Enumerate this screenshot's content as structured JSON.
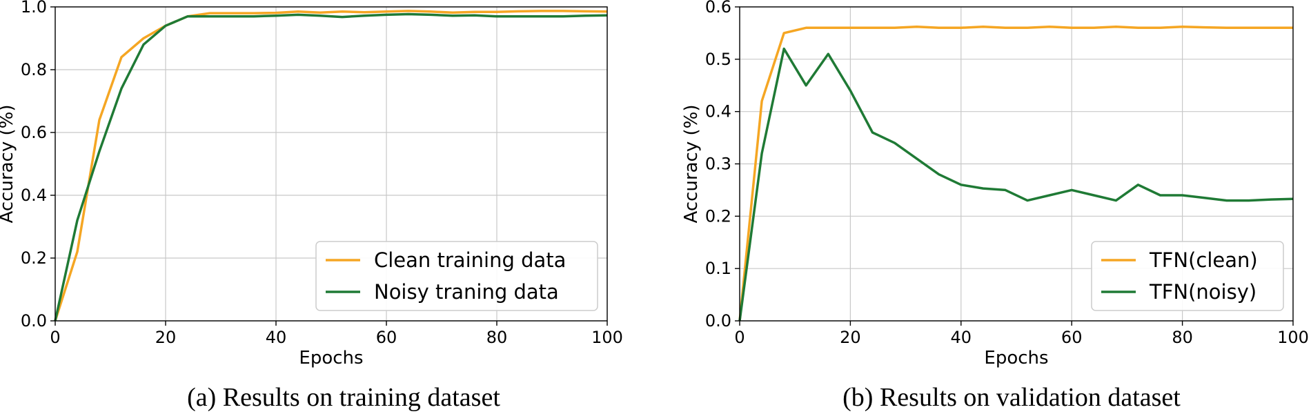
{
  "chart_data": [
    {
      "type": "line",
      "caption": "(a) Results on training dataset",
      "xlabel": "Epochs",
      "ylabel": "Accuracy (%)",
      "xlim": [
        0,
        100
      ],
      "ylim": [
        0,
        1.0
      ],
      "xticks": [
        0,
        20,
        40,
        60,
        80,
        100
      ],
      "yticks": [
        0.0,
        0.2,
        0.4,
        0.6,
        0.8,
        1.0
      ],
      "xtick_labels": [
        "0",
        "20",
        "40",
        "60",
        "80",
        "100"
      ],
      "ytick_labels": [
        "0.0",
        "0.2",
        "0.4",
        "0.6",
        "0.8",
        "1.0"
      ],
      "grid": true,
      "legend_position": "lower-right",
      "series": [
        {
          "name": "Clean training data",
          "color": "#f5a623",
          "x": [
            0,
            4,
            8,
            12,
            16,
            20,
            24,
            28,
            32,
            36,
            40,
            44,
            48,
            52,
            56,
            60,
            64,
            68,
            72,
            76,
            80,
            84,
            88,
            92,
            96,
            100
          ],
          "y": [
            0.0,
            0.22,
            0.64,
            0.84,
            0.9,
            0.94,
            0.97,
            0.98,
            0.98,
            0.98,
            0.981,
            0.985,
            0.982,
            0.985,
            0.983,
            0.985,
            0.987,
            0.985,
            0.982,
            0.984,
            0.984,
            0.986,
            0.987,
            0.987,
            0.986,
            0.985
          ]
        },
        {
          "name": "Noisy traning data",
          "color": "#1f7a35",
          "x": [
            0,
            4,
            8,
            12,
            16,
            20,
            24,
            28,
            32,
            36,
            40,
            44,
            48,
            52,
            56,
            60,
            64,
            68,
            72,
            76,
            80,
            84,
            88,
            92,
            96,
            100
          ],
          "y": [
            0.0,
            0.32,
            0.54,
            0.74,
            0.88,
            0.94,
            0.97,
            0.97,
            0.97,
            0.97,
            0.972,
            0.975,
            0.972,
            0.968,
            0.972,
            0.975,
            0.977,
            0.975,
            0.972,
            0.973,
            0.97,
            0.97,
            0.97,
            0.97,
            0.972,
            0.973
          ]
        }
      ]
    },
    {
      "type": "line",
      "caption": "(b) Results on validation dataset",
      "xlabel": "Epochs",
      "ylabel": "Accuracy (%)",
      "xlim": [
        0,
        100
      ],
      "ylim": [
        0,
        0.6
      ],
      "xticks": [
        0,
        20,
        40,
        60,
        80,
        100
      ],
      "yticks": [
        0.0,
        0.1,
        0.2,
        0.3,
        0.4,
        0.5,
        0.6
      ],
      "xtick_labels": [
        "0",
        "20",
        "40",
        "60",
        "80",
        "100"
      ],
      "ytick_labels": [
        "0.0",
        "0.1",
        "0.2",
        "0.3",
        "0.4",
        "0.5",
        "0.6"
      ],
      "grid": true,
      "legend_position": "lower-right",
      "series": [
        {
          "name": "TFN(clean)",
          "color": "#f5a623",
          "x": [
            0,
            4,
            8,
            12,
            16,
            20,
            24,
            28,
            32,
            36,
            40,
            44,
            48,
            52,
            56,
            60,
            64,
            68,
            72,
            76,
            80,
            84,
            88,
            92,
            96,
            100
          ],
          "y": [
            0.0,
            0.42,
            0.55,
            0.56,
            0.56,
            0.56,
            0.56,
            0.56,
            0.562,
            0.56,
            0.56,
            0.562,
            0.56,
            0.56,
            0.562,
            0.56,
            0.56,
            0.562,
            0.56,
            0.56,
            0.562,
            0.561,
            0.56,
            0.56,
            0.56,
            0.56
          ]
        },
        {
          "name": "TFN(noisy)",
          "color": "#1f7a35",
          "x": [
            0,
            4,
            8,
            12,
            16,
            20,
            24,
            28,
            32,
            36,
            40,
            44,
            48,
            52,
            56,
            60,
            64,
            68,
            72,
            76,
            80,
            84,
            88,
            92,
            96,
            100
          ],
          "y": [
            0.0,
            0.32,
            0.52,
            0.45,
            0.51,
            0.44,
            0.36,
            0.34,
            0.31,
            0.28,
            0.26,
            0.253,
            0.25,
            0.23,
            0.24,
            0.25,
            0.24,
            0.23,
            0.26,
            0.24,
            0.24,
            0.235,
            0.23,
            0.23,
            0.232,
            0.233
          ]
        }
      ]
    }
  ]
}
